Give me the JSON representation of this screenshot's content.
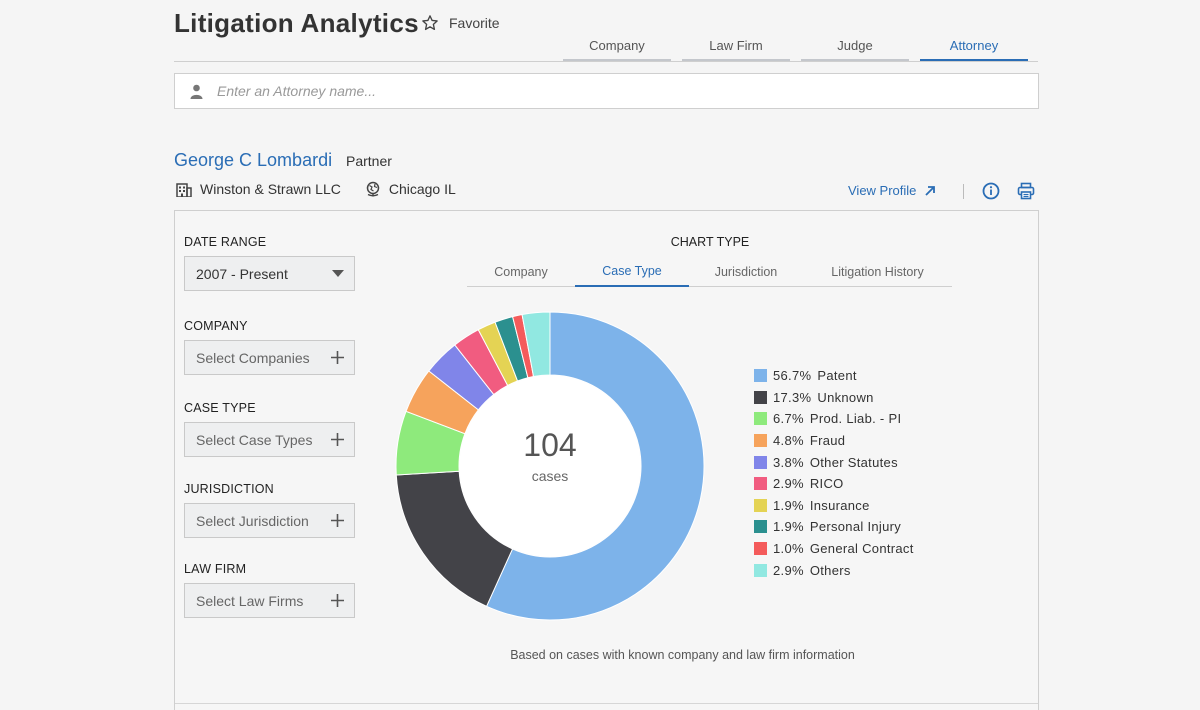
{
  "header": {
    "title": "Litigation Analytics",
    "favorite_label": "Favorite",
    "tabs": [
      {
        "label": "Company",
        "active": false
      },
      {
        "label": "Law Firm",
        "active": false
      },
      {
        "label": "Judge",
        "active": false
      },
      {
        "label": "Attorney",
        "active": true
      }
    ]
  },
  "search": {
    "placeholder": "Enter an Attorney name..."
  },
  "attorney": {
    "name": "George C Lombardi",
    "role": "Partner",
    "firm": "Winston & Strawn LLC",
    "location": "Chicago IL",
    "view_profile_label": "View Profile"
  },
  "filters": {
    "date_range": {
      "label": "DATE RANGE",
      "value": "2007 - Present"
    },
    "company": {
      "label": "COMPANY",
      "placeholder": "Select Companies"
    },
    "case_type": {
      "label": "CASE TYPE",
      "placeholder": "Select Case Types"
    },
    "jurisdiction": {
      "label": "JURISDICTION",
      "placeholder": "Select Jurisdiction"
    },
    "law_firm": {
      "label": "LAW FIRM",
      "placeholder": "Select Law Firms"
    }
  },
  "chart_type": {
    "label": "CHART TYPE",
    "tabs": [
      {
        "label": "Company",
        "active": false
      },
      {
        "label": "Case Type",
        "active": true
      },
      {
        "label": "Jurisdiction",
        "active": false
      },
      {
        "label": "Litigation History",
        "active": false
      }
    ]
  },
  "chart_data": {
    "type": "pie",
    "center_value": "104",
    "center_label": "cases",
    "categories": [
      "Patent",
      "Unknown",
      "Prod. Liab. - PI",
      "Fraud",
      "Other Statutes",
      "RICO",
      "Insurance",
      "Personal Injury",
      "General Contract",
      "Others"
    ],
    "percent_labels": [
      "56.7%",
      "17.3%",
      "6.7%",
      "4.8%",
      "3.8%",
      "2.9%",
      "1.9%",
      "1.9%",
      "1.0%",
      "2.9%"
    ],
    "values": [
      56.7,
      17.3,
      6.7,
      4.8,
      3.8,
      2.9,
      1.9,
      1.9,
      1.0,
      2.9
    ],
    "colors": [
      "#7db3ea",
      "#434348",
      "#8eea7c",
      "#f6a35c",
      "#8085e9",
      "#f15c80",
      "#e4d354",
      "#2b908f",
      "#f45b5b",
      "#91e8e1"
    ],
    "legend_position": "right",
    "footnote": "Based on cases with known company and law firm information"
  },
  "colors": {
    "accent": "#2a6db5",
    "background": "#f5f5f5"
  }
}
